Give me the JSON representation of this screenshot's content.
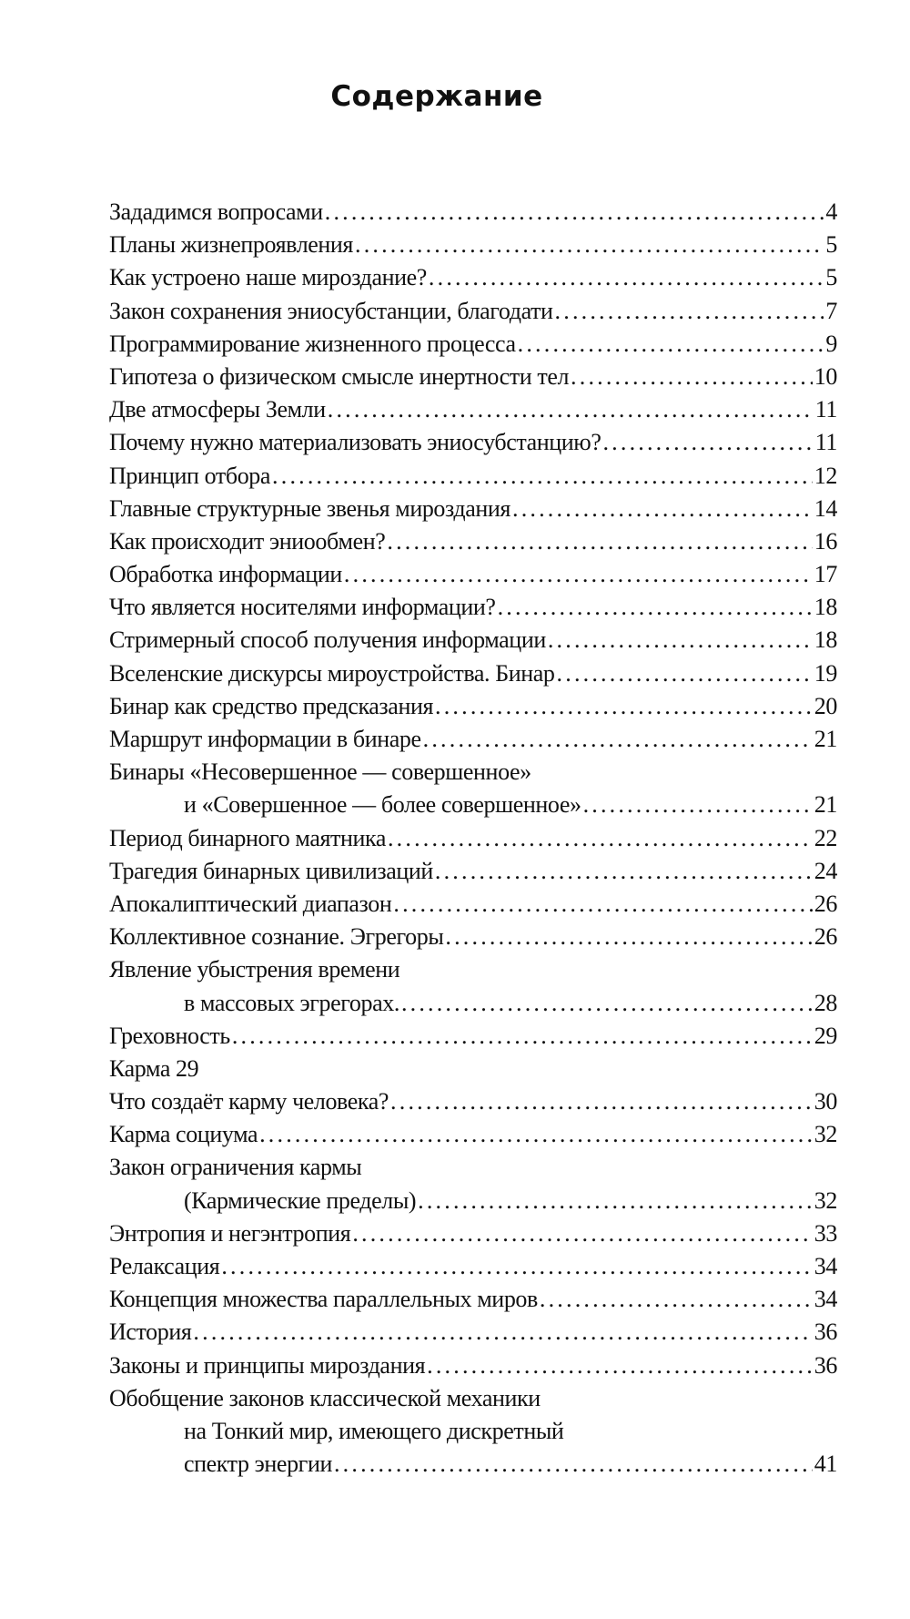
{
  "title": "Содержание",
  "entries": [
    {
      "lines": [
        "Зададимся вопросами"
      ],
      "page": "4"
    },
    {
      "lines": [
        "Планы жизнепроявления"
      ],
      "page": "5"
    },
    {
      "lines": [
        "Как устроено наше мироздание?"
      ],
      "page": "5"
    },
    {
      "lines": [
        "Закон сохранения эниосубстанции, благодати"
      ],
      "page": "7"
    },
    {
      "lines": [
        "Программирование жизненного процесса"
      ],
      "page": "9"
    },
    {
      "lines": [
        "Гипотеза о физическом смысле инертности тел"
      ],
      "page": "10"
    },
    {
      "lines": [
        "Две атмосферы Земли"
      ],
      "page": "11"
    },
    {
      "lines": [
        "Почему нужно материализовать эниосубстанцию?"
      ],
      "page": "11"
    },
    {
      "lines": [
        "Принцип отбора"
      ],
      "page": "12"
    },
    {
      "lines": [
        "Главные структурные звенья мироздания"
      ],
      "page": "14"
    },
    {
      "lines": [
        "Как происходит эниообмен?"
      ],
      "page": "16"
    },
    {
      "lines": [
        "Обработка информации"
      ],
      "page": "17"
    },
    {
      "lines": [
        "Что является носителями информации?"
      ],
      "page": "18"
    },
    {
      "lines": [
        "Стримерный способ получения информации"
      ],
      "page": "18"
    },
    {
      "lines": [
        "Вселенские дискурсы мироустройства. Бинар"
      ],
      "page": "19"
    },
    {
      "lines": [
        "Бинар как средство предсказания"
      ],
      "page": "20"
    },
    {
      "lines": [
        "Маршрут информации в бинаре"
      ],
      "page": "21"
    },
    {
      "lines": [
        "Бинары «Несовершенное — совершенное»",
        "и «Совершенное — более совершенное»"
      ],
      "page": "21"
    },
    {
      "lines": [
        "Период бинарного маятника"
      ],
      "page": "22"
    },
    {
      "lines": [
        "Трагедия бинарных цивилизаций"
      ],
      "page": "24"
    },
    {
      "lines": [
        "Апокалиптический диапазон"
      ],
      "page": "26"
    },
    {
      "lines": [
        "Коллективное сознание. Эгрегоры"
      ],
      "page": "26"
    },
    {
      "lines": [
        "Явление убыстрения времени",
        "в массовых эгрегорах."
      ],
      "page": "28"
    },
    {
      "lines": [
        "Греховность"
      ],
      "page": "29"
    },
    {
      "lines": [
        "Карма 29"
      ],
      "page": null
    },
    {
      "lines": [
        "Что создаёт карму человека?"
      ],
      "page": "30"
    },
    {
      "lines": [
        "Карма социума"
      ],
      "page": "32"
    },
    {
      "lines": [
        "Закон ограничения кармы",
        "(Кармические пределы)"
      ],
      "page": "32"
    },
    {
      "lines": [
        "Энтропия и негэнтропия"
      ],
      "page": "33"
    },
    {
      "lines": [
        "Релаксация"
      ],
      "page": "34"
    },
    {
      "lines": [
        "Концепция множества параллельных миров"
      ],
      "page": "34"
    },
    {
      "lines": [
        "История"
      ],
      "page": "36"
    },
    {
      "lines": [
        "Законы и принципы мироздания"
      ],
      "page": "36"
    },
    {
      "lines": [
        "Обобщение законов классической механики",
        "на Тонкий мир, имеющего дискретный",
        "спектр энергии"
      ],
      "page": "41"
    }
  ]
}
